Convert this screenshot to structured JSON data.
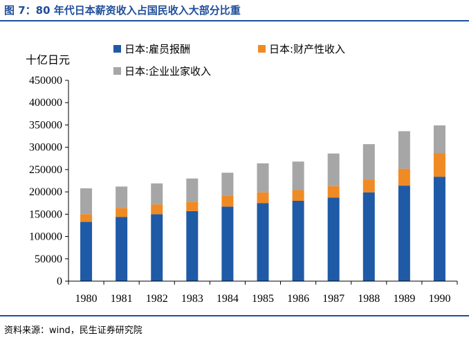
{
  "header": {
    "title": "图 7：80 年代日本薪资收入占国民收入大部分比重"
  },
  "footer": {
    "source": "资料来源：wind，民生证券研究院"
  },
  "colors": {
    "accent": "#1f4e9a",
    "series": [
      "#1f5aa6",
      "#f08a24",
      "#a6a6a6"
    ]
  },
  "chart_data": {
    "type": "bar",
    "stacked": true,
    "unit_label": "十亿日元",
    "categories": [
      "1980",
      "1981",
      "1982",
      "1983",
      "1984",
      "1985",
      "1986",
      "1987",
      "1988",
      "1989",
      "1990"
    ],
    "series": [
      {
        "name": "日本:雇员报酬",
        "values": [
          133000,
          144000,
          150000,
          157000,
          167000,
          175000,
          180000,
          187000,
          199000,
          214000,
          234000
        ]
      },
      {
        "name": "日本:财产性收入",
        "values": [
          17000,
          20000,
          22000,
          21000,
          24000,
          24000,
          24000,
          26000,
          29000,
          38000,
          53000
        ]
      },
      {
        "name": "日本:企业业家收入",
        "values": [
          58000,
          48000,
          47000,
          52000,
          52000,
          65000,
          64000,
          73000,
          79000,
          84000,
          62000
        ]
      }
    ],
    "yticks": [
      "0",
      "50000",
      "100000",
      "150000",
      "200000",
      "250000",
      "300000",
      "350000",
      "400000",
      "450000"
    ],
    "ylim": [
      0,
      450000
    ],
    "legend_position": "top",
    "grid": false
  }
}
